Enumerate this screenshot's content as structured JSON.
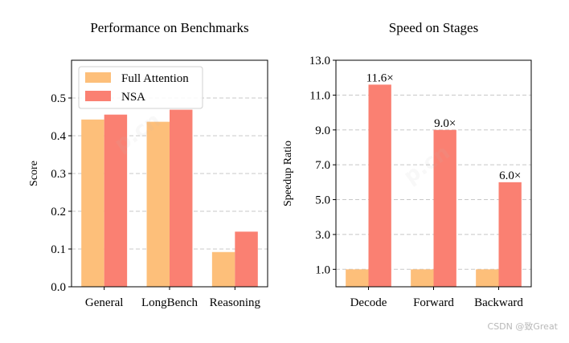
{
  "chart_data": [
    {
      "type": "bar",
      "title": "Performance on Benchmarks",
      "xlabel": "",
      "ylabel": "Score",
      "categories": [
        "General",
        "LongBench",
        "Reasoning"
      ],
      "ylim": [
        0,
        0.6
      ],
      "yticks": [
        0.0,
        0.1,
        0.2,
        0.3,
        0.4,
        0.5
      ],
      "ytick_labels": [
        "0.0",
        "0.1",
        "0.2",
        "0.3",
        "0.4",
        "0.5"
      ],
      "grid": "horizontal dashed",
      "legend": "top-left",
      "series": [
        {
          "name": "Full Attention",
          "color": "#FDBF7A",
          "values": [
            0.443,
            0.437,
            0.092
          ]
        },
        {
          "name": "NSA",
          "color": "#FA8072",
          "values": [
            0.456,
            0.469,
            0.146
          ]
        }
      ]
    },
    {
      "type": "bar",
      "title": "Speed on Stages",
      "xlabel": "",
      "ylabel": "Speedup Ratio",
      "categories": [
        "Decode",
        "Forward",
        "Backward"
      ],
      "ylim": [
        0,
        13.0
      ],
      "yticks": [
        1.0,
        3.0,
        5.0,
        7.0,
        9.0,
        11.0,
        13.0
      ],
      "ytick_labels": [
        "1.0",
        "3.0",
        "5.0",
        "7.0",
        "9.0",
        "11.0",
        "13.0"
      ],
      "grid": "horizontal dashed",
      "series": [
        {
          "name": "Full Attention",
          "color": "#FDBF7A",
          "values": [
            1.0,
            1.0,
            1.0
          ]
        },
        {
          "name": "NSA",
          "color": "#FA8072",
          "values": [
            11.6,
            9.0,
            6.0
          ],
          "labels": [
            "11.6×",
            "9.0×",
            "6.0×"
          ]
        }
      ]
    }
  ],
  "watermark": "CSDN @致Great"
}
